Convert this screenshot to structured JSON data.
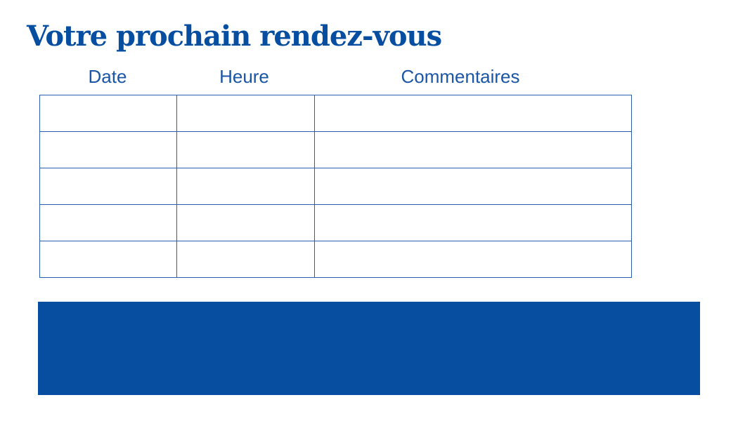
{
  "title": "Votre prochain rendez-vous",
  "table": {
    "columns": [
      "Date",
      "Heure",
      "Commentaires"
    ],
    "rows": [
      [
        "",
        "",
        ""
      ],
      [
        "",
        "",
        ""
      ],
      [
        "",
        "",
        ""
      ],
      [
        "",
        "",
        ""
      ],
      [
        "",
        "",
        ""
      ]
    ]
  },
  "colors": {
    "brand": "#074ea1"
  }
}
